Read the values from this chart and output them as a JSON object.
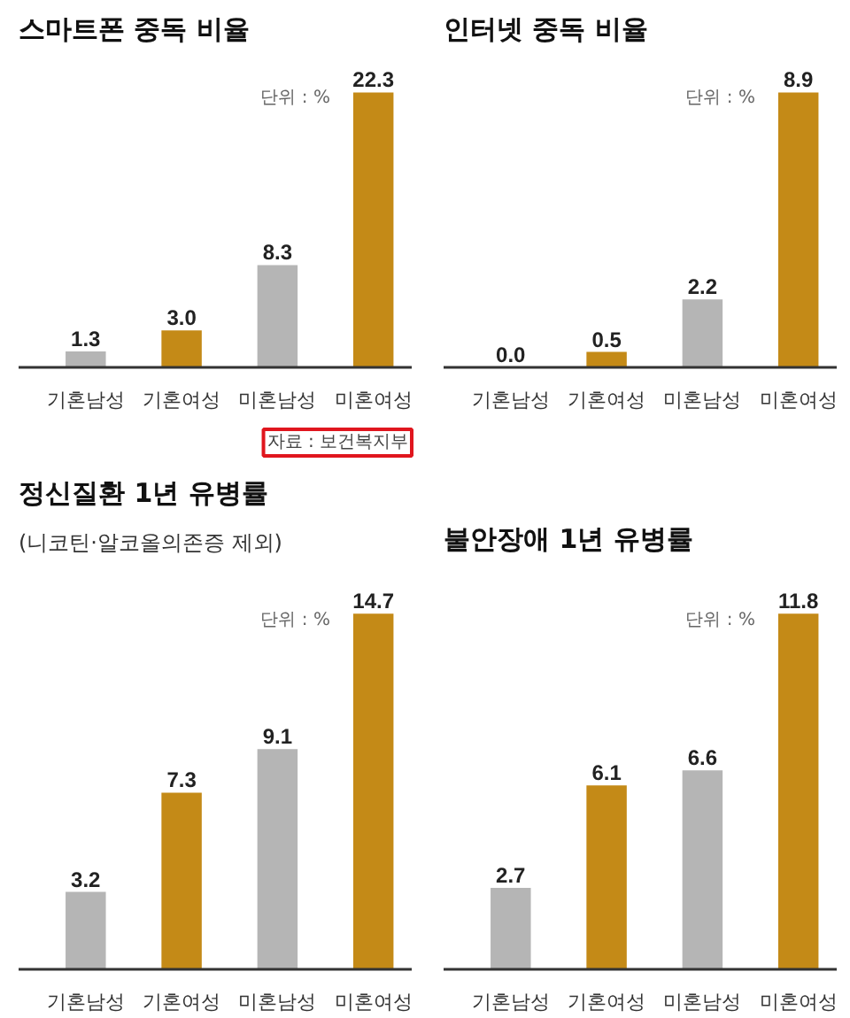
{
  "chart_data": [
    {
      "type": "bar",
      "title": "스마트폰 중독 비율",
      "categories": [
        "기혼남성",
        "기혼여성",
        "미혼남성",
        "미혼여성"
      ],
      "values": [
        1.3,
        3.0,
        8.3,
        22.3
      ],
      "value_labels": [
        "1.3",
        "3.0",
        "8.3",
        "22.3"
      ],
      "colors": [
        "#b5b5b5",
        "#c48a17",
        "#b5b5b5",
        "#c48a17"
      ],
      "tick_labels": "x",
      "annotations": [
        "단위 : %",
        "자료 : 보건복지부"
      ]
    },
    {
      "type": "bar",
      "title": "인터넷 중독 비율",
      "categories": [
        "기혼남성",
        "기혼여성",
        "미혼남성",
        "미혼여성"
      ],
      "values": [
        0.0,
        0.5,
        2.2,
        8.9
      ],
      "value_labels": [
        "0.0",
        "0.5",
        "2.2",
        "8.9"
      ],
      "colors": [
        "#b5b5b5",
        "#c48a17",
        "#b5b5b5",
        "#c48a17"
      ],
      "tick_labels": "x",
      "annotations": [
        "단위 : %"
      ]
    },
    {
      "type": "bar",
      "title": "정신질환 1년 유병률",
      "subtitle": "(니코틴·알코올의존증 제외)",
      "categories": [
        "기혼남성",
        "기혼여성",
        "미혼남성",
        "미혼여성"
      ],
      "values": [
        3.2,
        7.3,
        9.1,
        14.7
      ],
      "value_labels": [
        "3.2",
        "7.3",
        "9.1",
        "14.7"
      ],
      "colors": [
        "#b5b5b5",
        "#c48a17",
        "#b5b5b5",
        "#c48a17"
      ],
      "tick_labels": "x",
      "annotations": [
        "단위 : %"
      ]
    },
    {
      "type": "bar",
      "title": "불안장애 1년 유병률",
      "categories": [
        "기혼남성",
        "기혼여성",
        "미혼남성",
        "미혼여성"
      ],
      "values": [
        2.7,
        6.1,
        6.6,
        11.8
      ],
      "value_labels": [
        "2.7",
        "6.1",
        "6.6",
        "11.8"
      ],
      "colors": [
        "#b5b5b5",
        "#c48a17",
        "#b5b5b5",
        "#c48a17"
      ],
      "tick_labels": "x",
      "annotations": [
        "단위 : %"
      ]
    }
  ]
}
